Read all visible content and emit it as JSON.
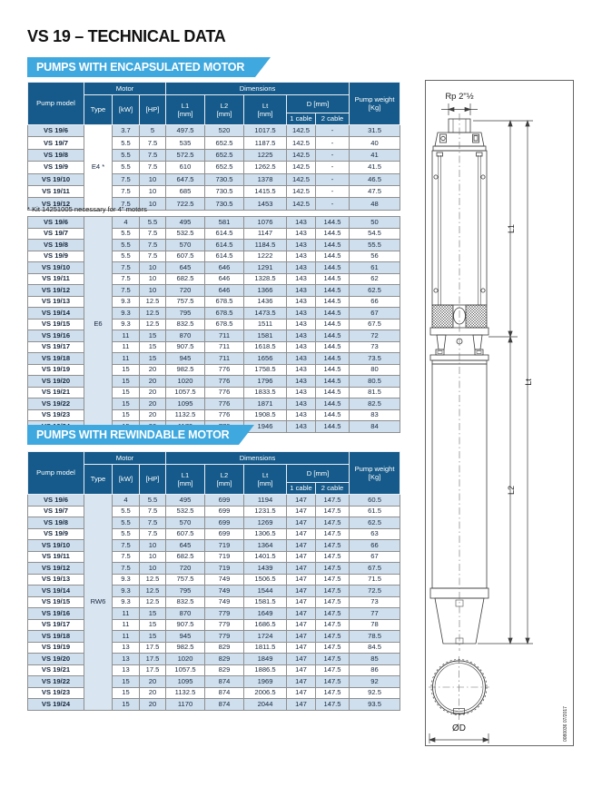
{
  "page": {
    "title": "VS 19 – TECHNICAL DATA"
  },
  "colors": {
    "header_blue": "#155a8a",
    "banner_blue": "#3fa8de",
    "row_shade": "#cfdfee",
    "grid_border": "#8f8f8f"
  },
  "header": {
    "pump_model": "Pump model",
    "motor": "Motor",
    "dimensions": "Dimensions",
    "pump_weight_1": "Pump weight",
    "pump_weight_2": "[Kg]",
    "type": "Type",
    "kw": "[kW]",
    "hp": "[HP]",
    "l1": "L1",
    "l2": "L2",
    "lt": "Lt",
    "mm": "[mm]",
    "d_mm": "D [mm]",
    "cable1": "1 cable",
    "cable2": "2 cable"
  },
  "encapsulated": {
    "banner": "PUMPS WITH ENCAPSULATED MOTOR",
    "footnote": "* Kit 14251005 necessary for 4\" motors",
    "e4": {
      "type_label": "E4 *",
      "rows": [
        [
          "VS 19/6",
          "3.7",
          "5",
          "497.5",
          "520",
          "1017.5",
          "142.5",
          "-",
          "31.5"
        ],
        [
          "VS 19/7",
          "5.5",
          "7.5",
          "535",
          "652.5",
          "1187.5",
          "142.5",
          "-",
          "40"
        ],
        [
          "VS 19/8",
          "5.5",
          "7.5",
          "572.5",
          "652.5",
          "1225",
          "142.5",
          "-",
          "41"
        ],
        [
          "VS 19/9",
          "5.5",
          "7.5",
          "610",
          "652.5",
          "1262.5",
          "142.5",
          "-",
          "41.5"
        ],
        [
          "VS 19/10",
          "7.5",
          "10",
          "647.5",
          "730.5",
          "1378",
          "142.5",
          "-",
          "46.5"
        ],
        [
          "VS 19/11",
          "7.5",
          "10",
          "685",
          "730.5",
          "1415.5",
          "142.5",
          "-",
          "47.5"
        ],
        [
          "VS 19/12",
          "7.5",
          "10",
          "722.5",
          "730.5",
          "1453",
          "142.5",
          "-",
          "48"
        ]
      ]
    },
    "e6": {
      "type_label": "E6",
      "rows": [
        [
          "VS 19/6",
          "4",
          "5.5",
          "495",
          "581",
          "1076",
          "143",
          "144.5",
          "50"
        ],
        [
          "VS 19/7",
          "5.5",
          "7.5",
          "532.5",
          "614.5",
          "1147",
          "143",
          "144.5",
          "54.5"
        ],
        [
          "VS 19/8",
          "5.5",
          "7.5",
          "570",
          "614.5",
          "1184.5",
          "143",
          "144.5",
          "55.5"
        ],
        [
          "VS 19/9",
          "5.5",
          "7.5",
          "607.5",
          "614.5",
          "1222",
          "143",
          "144.5",
          "56"
        ],
        [
          "VS 19/10",
          "7.5",
          "10",
          "645",
          "646",
          "1291",
          "143",
          "144.5",
          "61"
        ],
        [
          "VS 19/11",
          "7.5",
          "10",
          "682.5",
          "646",
          "1328.5",
          "143",
          "144.5",
          "62"
        ],
        [
          "VS 19/12",
          "7.5",
          "10",
          "720",
          "646",
          "1366",
          "143",
          "144.5",
          "62.5"
        ],
        [
          "VS 19/13",
          "9.3",
          "12.5",
          "757.5",
          "678.5",
          "1436",
          "143",
          "144.5",
          "66"
        ],
        [
          "VS 19/14",
          "9.3",
          "12.5",
          "795",
          "678.5",
          "1473.5",
          "143",
          "144.5",
          "67"
        ],
        [
          "VS 19/15",
          "9.3",
          "12.5",
          "832.5",
          "678.5",
          "1511",
          "143",
          "144.5",
          "67.5"
        ],
        [
          "VS 19/16",
          "11",
          "15",
          "870",
          "711",
          "1581",
          "143",
          "144.5",
          "72"
        ],
        [
          "VS 19/17",
          "11",
          "15",
          "907.5",
          "711",
          "1618.5",
          "143",
          "144.5",
          "73"
        ],
        [
          "VS 19/18",
          "11",
          "15",
          "945",
          "711",
          "1656",
          "143",
          "144.5",
          "73.5"
        ],
        [
          "VS 19/19",
          "15",
          "20",
          "982.5",
          "776",
          "1758.5",
          "143",
          "144.5",
          "80"
        ],
        [
          "VS 19/20",
          "15",
          "20",
          "1020",
          "776",
          "1796",
          "143",
          "144.5",
          "80.5"
        ],
        [
          "VS 19/21",
          "15",
          "20",
          "1057.5",
          "776",
          "1833.5",
          "143",
          "144.5",
          "81.5"
        ],
        [
          "VS 19/22",
          "15",
          "20",
          "1095",
          "776",
          "1871",
          "143",
          "144.5",
          "82.5"
        ],
        [
          "VS 19/23",
          "15",
          "20",
          "1132.5",
          "776",
          "1908.5",
          "143",
          "144.5",
          "83"
        ],
        [
          "VS 19/24",
          "15",
          "20",
          "1170",
          "776",
          "1946",
          "143",
          "144.5",
          "84"
        ]
      ]
    }
  },
  "rewindable": {
    "banner": "PUMPS WITH REWINDABLE MOTOR",
    "rw6": {
      "type_label": "RW6",
      "rows": [
        [
          "VS 19/6",
          "4",
          "5.5",
          "495",
          "699",
          "1194",
          "147",
          "147.5",
          "60.5"
        ],
        [
          "VS 19/7",
          "5.5",
          "7.5",
          "532.5",
          "699",
          "1231.5",
          "147",
          "147.5",
          "61.5"
        ],
        [
          "VS 19/8",
          "5.5",
          "7.5",
          "570",
          "699",
          "1269",
          "147",
          "147.5",
          "62.5"
        ],
        [
          "VS 19/9",
          "5.5",
          "7.5",
          "607.5",
          "699",
          "1306.5",
          "147",
          "147.5",
          "63"
        ],
        [
          "VS 19/10",
          "7.5",
          "10",
          "645",
          "719",
          "1364",
          "147",
          "147.5",
          "66"
        ],
        [
          "VS 19/11",
          "7.5",
          "10",
          "682.5",
          "719",
          "1401.5",
          "147",
          "147.5",
          "67"
        ],
        [
          "VS 19/12",
          "7.5",
          "10",
          "720",
          "719",
          "1439",
          "147",
          "147.5",
          "67.5"
        ],
        [
          "VS 19/13",
          "9.3",
          "12.5",
          "757.5",
          "749",
          "1506.5",
          "147",
          "147.5",
          "71.5"
        ],
        [
          "VS 19/14",
          "9.3",
          "12.5",
          "795",
          "749",
          "1544",
          "147",
          "147.5",
          "72.5"
        ],
        [
          "VS 19/15",
          "9.3",
          "12.5",
          "832.5",
          "749",
          "1581.5",
          "147",
          "147.5",
          "73"
        ],
        [
          "VS 19/16",
          "11",
          "15",
          "870",
          "779",
          "1649",
          "147",
          "147.5",
          "77"
        ],
        [
          "VS 19/17",
          "11",
          "15",
          "907.5",
          "779",
          "1686.5",
          "147",
          "147.5",
          "78"
        ],
        [
          "VS 19/18",
          "11",
          "15",
          "945",
          "779",
          "1724",
          "147",
          "147.5",
          "78.5"
        ],
        [
          "VS 19/19",
          "13",
          "17.5",
          "982.5",
          "829",
          "1811.5",
          "147",
          "147.5",
          "84.5"
        ],
        [
          "VS 19/20",
          "13",
          "17.5",
          "1020",
          "829",
          "1849",
          "147",
          "147.5",
          "85"
        ],
        [
          "VS 19/21",
          "13",
          "17.5",
          "1057.5",
          "829",
          "1886.5",
          "147",
          "147.5",
          "86"
        ],
        [
          "VS 19/22",
          "15",
          "20",
          "1095",
          "874",
          "1969",
          "147",
          "147.5",
          "92"
        ],
        [
          "VS 19/23",
          "15",
          "20",
          "1132.5",
          "874",
          "2006.5",
          "147",
          "147.5",
          "92.5"
        ],
        [
          "VS 19/24",
          "15",
          "20",
          "1170",
          "874",
          "2044",
          "147",
          "147.5",
          "93.5"
        ]
      ]
    }
  },
  "drawing": {
    "rp_label": "Rp 2\"½",
    "dim_l1": "L1",
    "dim_lt": "Lt",
    "dim_l2": "L2",
    "dim_od": "ØD",
    "doc_number": "0080036 07/2017"
  }
}
